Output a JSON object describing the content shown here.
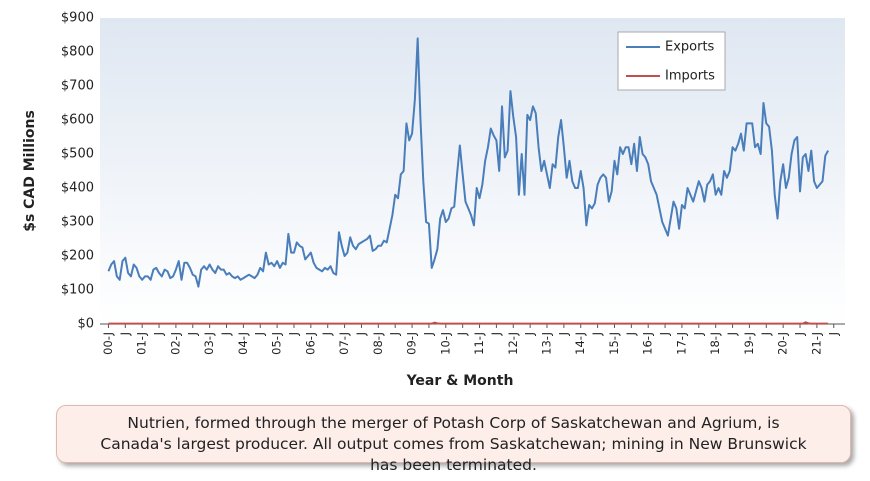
{
  "chart_data": {
    "type": "line",
    "y_label": "$s CAD Millions",
    "x_label": "Year & Month",
    "note": "Nutrien, formed through the merger of Potash Corp of Saskatchewan and Agrium, is Canada's largest producer. All output comes from Saskatchewan; mining in New Brunswick has been terminated.",
    "ylim": [
      0,
      900
    ],
    "yticks": [
      {
        "value": 0,
        "label": "$0"
      },
      {
        "value": 100,
        "label": "$100"
      },
      {
        "value": 200,
        "label": "$200"
      },
      {
        "value": 300,
        "label": "$300"
      },
      {
        "value": 400,
        "label": "$400"
      },
      {
        "value": 500,
        "label": "$500"
      },
      {
        "value": 600,
        "label": "$600"
      },
      {
        "value": 700,
        "label": "$700"
      },
      {
        "value": 800,
        "label": "$800"
      },
      {
        "value": 900,
        "label": "$900"
      }
    ],
    "grid": false,
    "legend_position": "top-right",
    "categories": [
      "00-J",
      null,
      null,
      null,
      null,
      null,
      "J",
      null,
      null,
      null,
      null,
      null,
      "01-J",
      null,
      null,
      null,
      null,
      null,
      "J",
      null,
      null,
      null,
      null,
      null,
      "02-J",
      null,
      null,
      null,
      null,
      null,
      "J",
      null,
      null,
      null,
      null,
      null,
      "03-J",
      null,
      null,
      null,
      null,
      null,
      "J",
      null,
      null,
      null,
      null,
      null,
      "04-J",
      null,
      null,
      null,
      null,
      null,
      "J",
      null,
      null,
      null,
      null,
      null,
      "05-J",
      null,
      null,
      null,
      null,
      null,
      "J",
      null,
      null,
      null,
      null,
      null,
      "06-J",
      null,
      null,
      null,
      null,
      null,
      "J",
      null,
      null,
      null,
      null,
      null,
      "07-J",
      null,
      null,
      null,
      null,
      null,
      "J",
      null,
      null,
      null,
      null,
      null,
      "08-J",
      null,
      null,
      null,
      null,
      null,
      "J",
      null,
      null,
      null,
      null,
      null,
      "09-J",
      null,
      null,
      null,
      null,
      null,
      "J",
      null,
      null,
      null,
      null,
      null,
      "10-J",
      null,
      null,
      null,
      null,
      null,
      "J",
      null,
      null,
      null,
      null,
      null,
      "11-J",
      null,
      null,
      null,
      null,
      null,
      "J",
      null,
      null,
      null,
      null,
      null,
      "12-J",
      null,
      null,
      null,
      null,
      null,
      "J",
      null,
      null,
      null,
      null,
      null,
      "13-J",
      null,
      null,
      null,
      null,
      null,
      "J",
      null,
      null,
      null,
      null,
      null,
      "14-J",
      null,
      null,
      null,
      null,
      null,
      "J",
      null,
      null,
      null,
      null,
      null,
      "15-J",
      null,
      null,
      null,
      null,
      null,
      "J",
      null,
      null,
      null,
      null,
      null,
      "16-J",
      null,
      null,
      null,
      null,
      null,
      "J",
      null,
      null,
      null,
      null,
      null,
      "17-J",
      null,
      null,
      null,
      null,
      null,
      "J",
      null,
      null,
      null,
      null,
      null,
      "18-J",
      null,
      null,
      null,
      null,
      null,
      "J",
      null,
      null,
      null,
      null,
      null,
      "19-J",
      null,
      null,
      null,
      null,
      null,
      "J",
      null,
      null,
      null,
      null,
      null,
      "20-J",
      null,
      null,
      null,
      null,
      null,
      "J",
      null,
      null,
      null,
      null,
      null,
      "21-J",
      null,
      null,
      null,
      null,
      null,
      "J"
    ],
    "series": [
      {
        "name": "Exports",
        "color": "#4a7ebb",
        "values": [
          155,
          175,
          185,
          140,
          130,
          185,
          195,
          150,
          140,
          175,
          165,
          140,
          130,
          140,
          140,
          130,
          160,
          165,
          150,
          140,
          160,
          155,
          135,
          140,
          160,
          185,
          130,
          180,
          180,
          165,
          145,
          140,
          110,
          160,
          170,
          160,
          175,
          160,
          150,
          170,
          160,
          160,
          145,
          150,
          140,
          135,
          140,
          130,
          135,
          140,
          145,
          140,
          135,
          145,
          165,
          155,
          210,
          175,
          180,
          170,
          185,
          165,
          180,
          175,
          265,
          210,
          210,
          240,
          230,
          225,
          190,
          200,
          210,
          180,
          165,
          160,
          155,
          165,
          160,
          170,
          150,
          145,
          270,
          230,
          200,
          210,
          255,
          230,
          220,
          235,
          240,
          245,
          250,
          260,
          215,
          220,
          230,
          230,
          245,
          240,
          280,
          320,
          380,
          370,
          440,
          450,
          590,
          540,
          560,
          660,
          840,
          600,
          420,
          300,
          295,
          165,
          190,
          220,
          310,
          335,
          300,
          310,
          340,
          345,
          440,
          525,
          440,
          360,
          340,
          320,
          290,
          400,
          370,
          410,
          480,
          520,
          575,
          555,
          540,
          450,
          640,
          490,
          510,
          685,
          610,
          550,
          380,
          500,
          380,
          615,
          600,
          640,
          620,
          520,
          450,
          480,
          440,
          400,
          470,
          460,
          550,
          600,
          520,
          430,
          480,
          420,
          400,
          400,
          450,
          400,
          290,
          350,
          340,
          355,
          410,
          430,
          440,
          430,
          360,
          390,
          480,
          440,
          520,
          500,
          520,
          520,
          470,
          530,
          450,
          550,
          500,
          490,
          470,
          420,
          400,
          380,
          340,
          300,
          280,
          260,
          310,
          360,
          340,
          280,
          350,
          340,
          400,
          380,
          360,
          390,
          420,
          400,
          360,
          410,
          420,
          440,
          380,
          400,
          380,
          450,
          430,
          450,
          520,
          510,
          530,
          560,
          510,
          590,
          590,
          590,
          520,
          530,
          500,
          650,
          590,
          580,
          510,
          380,
          310,
          420,
          470,
          400,
          430,
          500,
          540,
          550,
          390,
          490,
          500,
          450,
          510,
          420,
          400,
          410,
          420,
          495,
          510,
          null,
          null
        ]
      },
      {
        "name": "Imports",
        "color": "#c0504d",
        "values": [
          1,
          1,
          1,
          1,
          1,
          1,
          1,
          1,
          1,
          1,
          1,
          1,
          1,
          1,
          1,
          1,
          1,
          1,
          1,
          1,
          1,
          1,
          1,
          1,
          1,
          1,
          1,
          1,
          1,
          1,
          1,
          1,
          1,
          1,
          1,
          1,
          1,
          1,
          1,
          1,
          1,
          1,
          1,
          1,
          1,
          1,
          1,
          1,
          1,
          1,
          1,
          1,
          1,
          1,
          1,
          1,
          1,
          1,
          1,
          1,
          1,
          1,
          1,
          1,
          1,
          1,
          1,
          1,
          1,
          1,
          1,
          1,
          1,
          1,
          1,
          1,
          1,
          1,
          1,
          1,
          1,
          1,
          1,
          1,
          1,
          1,
          1,
          1,
          1,
          1,
          1,
          1,
          1,
          1,
          1,
          1,
          1,
          1,
          1,
          1,
          1,
          1,
          1,
          1,
          1,
          1,
          1,
          1,
          1,
          1,
          1,
          1,
          1,
          1,
          1,
          1,
          4,
          2,
          1,
          1,
          1,
          1,
          1,
          1,
          1,
          1,
          1,
          1,
          1,
          1,
          1,
          1,
          1,
          1,
          1,
          1,
          1,
          1,
          1,
          1,
          1,
          1,
          1,
          1,
          1,
          1,
          1,
          1,
          1,
          1,
          1,
          1,
          1,
          1,
          1,
          1,
          1,
          1,
          1,
          1,
          1,
          1,
          1,
          1,
          1,
          1,
          1,
          1,
          1,
          1,
          1,
          1,
          1,
          1,
          1,
          1,
          1,
          1,
          1,
          1,
          1,
          1,
          1,
          1,
          1,
          1,
          1,
          1,
          1,
          1,
          1,
          1,
          1,
          1,
          1,
          1,
          1,
          1,
          1,
          1,
          1,
          1,
          1,
          1,
          1,
          1,
          1,
          1,
          1,
          1,
          1,
          1,
          1,
          1,
          1,
          1,
          1,
          1,
          1,
          1,
          1,
          1,
          1,
          1,
          1,
          1,
          1,
          1,
          1,
          1,
          1,
          1,
          1,
          1,
          1,
          1,
          1,
          1,
          1,
          1,
          1,
          1,
          1,
          1,
          1,
          1,
          1,
          1,
          5,
          2,
          1,
          1,
          1,
          1,
          1,
          1,
          1,
          null,
          null
        ]
      }
    ]
  }
}
